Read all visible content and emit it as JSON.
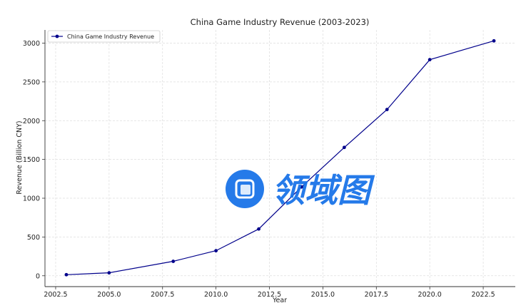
{
  "chart_data": {
    "type": "line",
    "title": "China Game Industry Revenue (2003-2023)",
    "xlabel": "Year",
    "ylabel": "Revenue (Billion CNY)",
    "xlim": [
      2002.0,
      2024.0
    ],
    "ylim": [
      -140,
      3170
    ],
    "x_ticks": [
      2002.5,
      2005.0,
      2007.5,
      2010.0,
      2012.5,
      2015.0,
      2017.5,
      2020.0,
      2022.5
    ],
    "x_tick_labels": [
      "2002.5",
      "2005.0",
      "2007.5",
      "2010.0",
      "2012.5",
      "2015.0",
      "2017.5",
      "2020.0",
      "2022.5"
    ],
    "y_ticks": [
      0,
      500,
      1000,
      1500,
      2000,
      2500,
      3000
    ],
    "y_tick_labels": [
      "0",
      "500",
      "1000",
      "1500",
      "2000",
      "2500",
      "3000"
    ],
    "grid": true,
    "legend_position": "top-left",
    "series": [
      {
        "name": "China Game Industry Revenue",
        "color": "#00008b",
        "marker": "circle",
        "x": [
          2003,
          2005,
          2008,
          2010,
          2012,
          2014,
          2016,
          2018,
          2020,
          2023
        ],
        "y": [
          14,
          38,
          186,
          323,
          603,
          1145,
          1655,
          2144,
          2787,
          3029
        ]
      }
    ]
  },
  "watermark": {
    "text": "领域图",
    "color": "#1a73e8"
  }
}
